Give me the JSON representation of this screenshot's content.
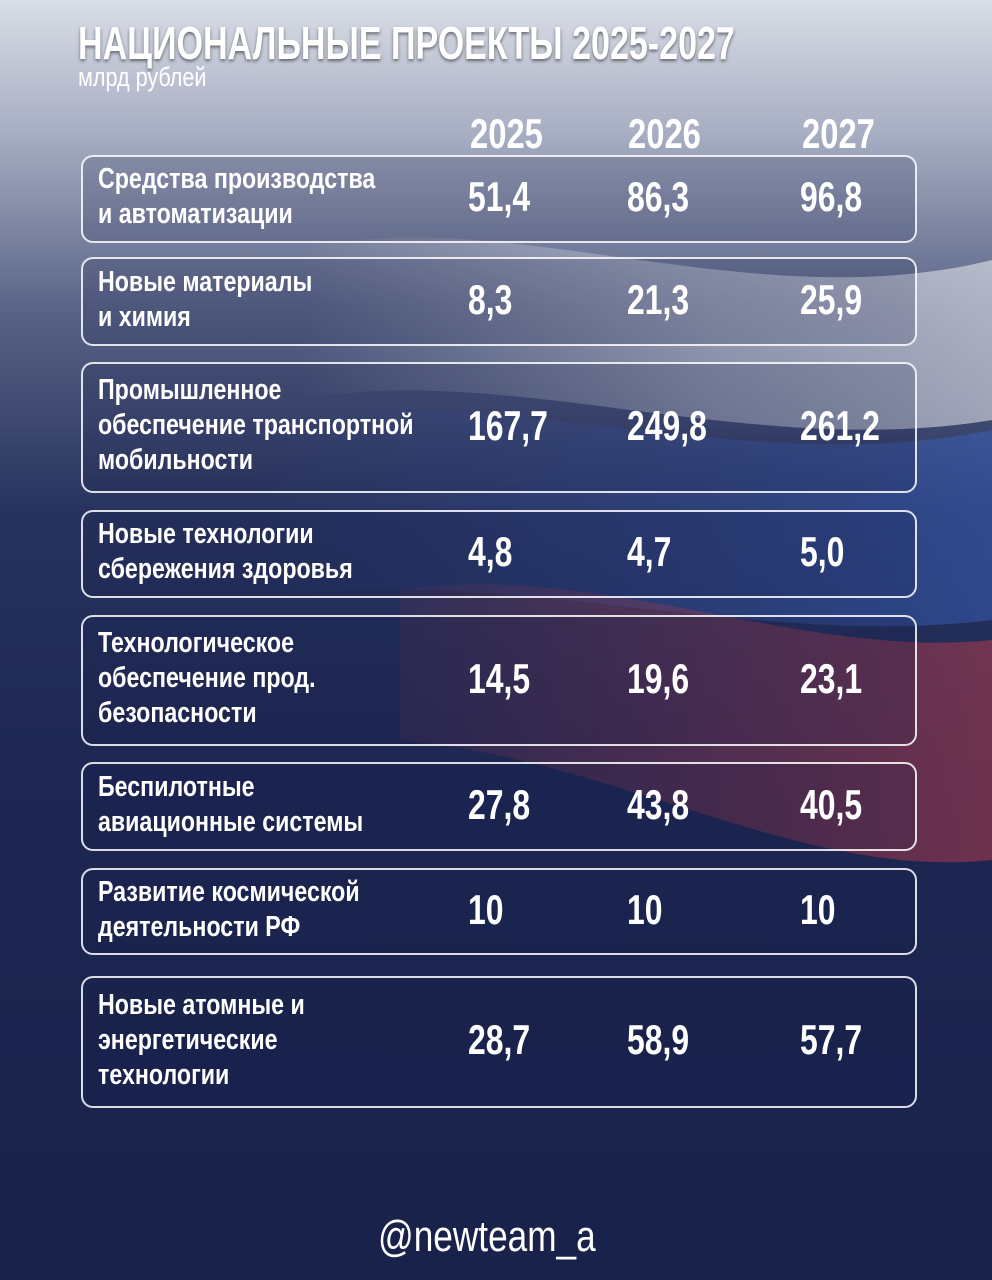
{
  "header": {
    "title": "НАЦИОНАЛЬНЫЕ ПРОЕКТЫ 2025-2027",
    "subtitle": "млрд рублей"
  },
  "table": {
    "columns": [
      "2025",
      "2026",
      "2027"
    ],
    "rows": [
      {
        "label": [
          "Средства производства",
          "и автоматизации"
        ],
        "values": [
          "51,4",
          "86,3",
          "96,8"
        ]
      },
      {
        "label": [
          "Новые материалы",
          "и химия"
        ],
        "values": [
          "8,3",
          "21,3",
          "25,9"
        ]
      },
      {
        "label": [
          "Промышленное",
          "обеспечение транспортной",
          "мобильности"
        ],
        "values": [
          "167,7",
          "249,8",
          "261,2"
        ]
      },
      {
        "label": [
          "Новые технологии",
          "сбережения здоровья"
        ],
        "values": [
          "4,8",
          "4,7",
          "5,0"
        ]
      },
      {
        "label": [
          "Технологическое",
          "обеспечение прод.",
          "безопасности"
        ],
        "values": [
          "14,5",
          "19,6",
          "23,1"
        ]
      },
      {
        "label": [
          "Беспилотные",
          "авиационные системы"
        ],
        "values": [
          "27,8",
          "43,8",
          "40,5"
        ]
      },
      {
        "label": [
          "Развитие космической",
          "деятельности РФ"
        ],
        "values": [
          "10",
          "10",
          "10"
        ]
      },
      {
        "label": [
          "Новые атомные и",
          "энергетические",
          "технологии"
        ],
        "values": [
          "28,7",
          "58,9",
          "57,7"
        ]
      }
    ]
  },
  "footer": "@newteam_a"
}
